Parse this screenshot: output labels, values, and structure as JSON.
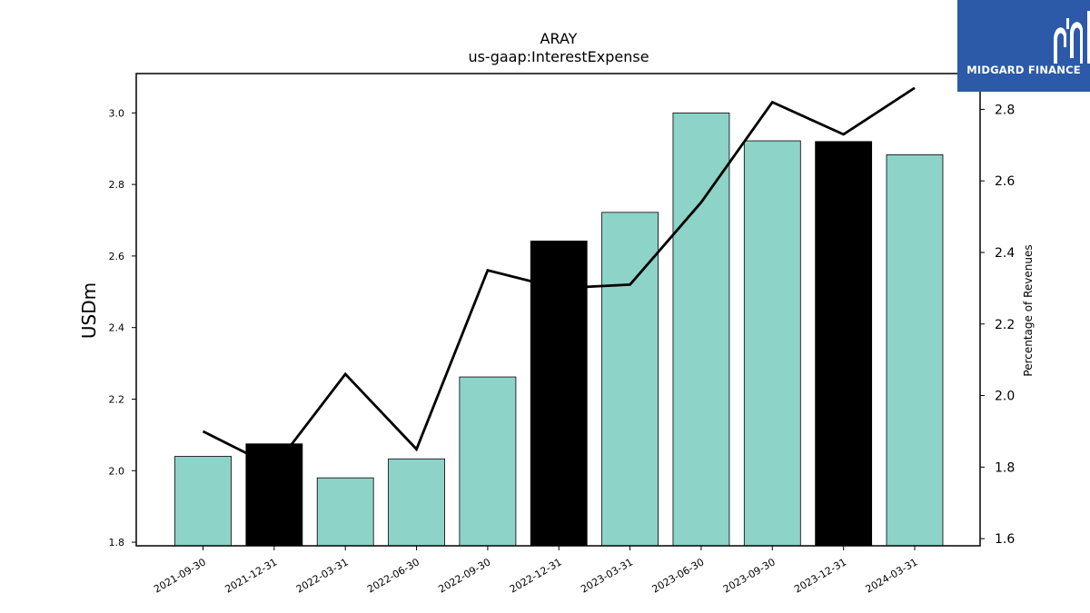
{
  "chart_data": {
    "type": "bar",
    "title": "ARAY",
    "subtitle": "us-gaap:InterestExpense",
    "ylabel": "USDm",
    "y2label": "Percentage of Revenues",
    "categories": [
      "2021-09-30",
      "2021-12-31",
      "2022-03-31",
      "2022-06-30",
      "2022-09-30",
      "2022-12-31",
      "2023-03-31",
      "2023-06-30",
      "2023-09-30",
      "2023-12-31",
      "2024-03-31"
    ],
    "series": [
      {
        "type": "bar",
        "values": [
          2.04,
          2.075,
          1.98,
          2.033,
          2.262,
          2.642,
          2.722,
          3.0,
          2.922,
          2.92,
          2.883
        ]
      },
      {
        "type": "line",
        "axis": "right",
        "values": [
          1.9,
          1.8,
          2.06,
          1.85,
          2.35,
          2.3,
          2.31,
          2.54,
          2.82,
          2.73,
          2.86
        ]
      }
    ],
    "bar_colors": [
      "#8dd3c7",
      "#000000",
      "#8dd3c7",
      "#8dd3c7",
      "#8dd3c7",
      "#000000",
      "#8dd3c7",
      "#8dd3c7",
      "#8dd3c7",
      "#000000",
      "#8dd3c7"
    ],
    "line_color": "#000000",
    "ylim": [
      1.79,
      3.11
    ],
    "y2lim": [
      1.58,
      2.9
    ],
    "yticks": [
      1.8,
      2.0,
      2.2,
      2.4,
      2.6,
      2.8,
      3.0
    ],
    "y2ticks": [
      1.6,
      1.8,
      2.0,
      2.2,
      2.4,
      2.6,
      2.8
    ],
    "grid": false
  },
  "logo": {
    "text": "MIDGARD FINANCE",
    "background": "#2c5aa8"
  }
}
